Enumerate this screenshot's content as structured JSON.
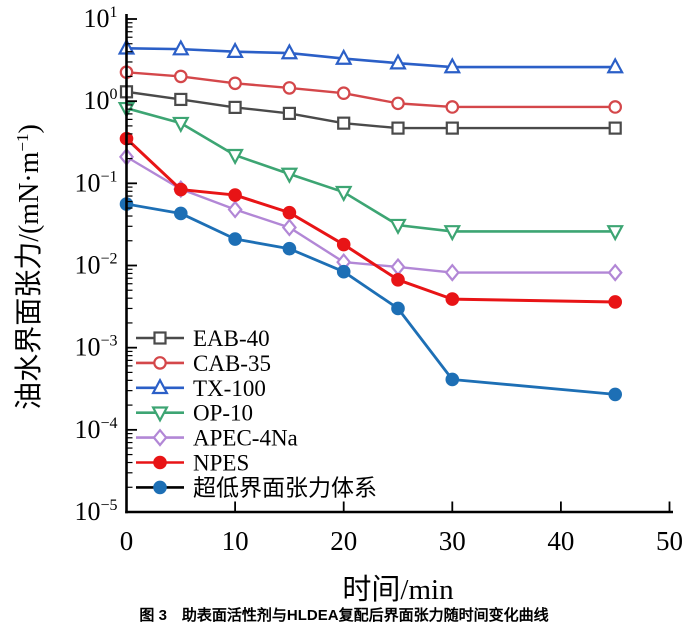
{
  "figure": {
    "caption": "图 3　助表面活性剂与HLDEA复配后界面张力随时间变化曲线"
  },
  "chart_data": {
    "type": "line",
    "title": "",
    "xlabel": "时间/min",
    "ylabel": "油水界面张力/(mN·m⁻¹)",
    "ylabel_parts": {
      "pre": "油水界面张力/(mN·m",
      "sup": "−1",
      "post": ")"
    },
    "x_scale": "linear",
    "y_scale": "log",
    "xlim": [
      0,
      50
    ],
    "ylim": [
      1e-05,
      10
    ],
    "xticks": [
      0,
      10,
      20,
      30,
      40,
      50
    ],
    "ytick_exponents": [
      1,
      0,
      -1,
      -2,
      -3,
      -4,
      -5
    ],
    "grid": false,
    "legend_position": "inside-lower-left",
    "axis_color": "#000000",
    "x": [
      0,
      5,
      10,
      15,
      20,
      25,
      30,
      45
    ],
    "series": [
      {
        "name": "EAB-40",
        "color": "#4a4a4a",
        "marker": "square",
        "fill": "open",
        "line_width": 2.4,
        "values": [
          1.3,
          1.05,
          0.84,
          0.71,
          0.54,
          0.47,
          0.47,
          0.47
        ]
      },
      {
        "name": "CAB-35",
        "color": "#d4474a",
        "marker": "circle",
        "fill": "open",
        "line_width": 2.4,
        "values": [
          2.25,
          2.0,
          1.65,
          1.45,
          1.25,
          0.94,
          0.85,
          0.85
        ]
      },
      {
        "name": "TX-100",
        "color": "#2b5fc7",
        "marker": "triangle-up",
        "fill": "open",
        "line_width": 2.6,
        "values": [
          4.4,
          4.3,
          4.0,
          3.85,
          3.3,
          2.9,
          2.6,
          2.6
        ]
      },
      {
        "name": "OP-10",
        "color": "#3da573",
        "marker": "triangle-down",
        "fill": "open",
        "line_width": 2.6,
        "values": [
          0.82,
          0.54,
          0.22,
          0.13,
          0.078,
          0.031,
          0.026,
          0.026
        ]
      },
      {
        "name": "APEC-4Na",
        "color": "#b287d6",
        "marker": "diamond",
        "fill": "open",
        "line_width": 2.4,
        "values": [
          0.21,
          0.085,
          0.048,
          0.029,
          0.011,
          0.0096,
          0.0082,
          0.0082
        ]
      },
      {
        "name": "NPES",
        "color": "#e81416",
        "marker": "circle",
        "fill": "solid",
        "line_width": 3.0,
        "values": [
          0.35,
          0.084,
          0.072,
          0.044,
          0.018,
          0.0067,
          0.0039,
          0.0036
        ]
      },
      {
        "name": "超低界面张力体系",
        "color": "#1d6fb5",
        "marker": "circle",
        "fill": "solid",
        "line_width": 2.8,
        "legend_line_color": "#000000",
        "values": [
          0.056,
          0.043,
          0.021,
          0.016,
          0.0084,
          0.003,
          0.00041,
          0.00027
        ]
      }
    ]
  }
}
